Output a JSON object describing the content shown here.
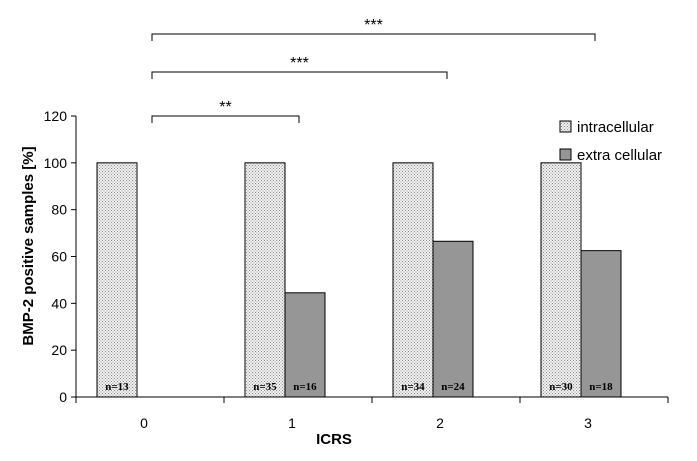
{
  "chart_data": {
    "type": "bar",
    "title": "",
    "xlabel": "ICRS",
    "ylabel": "BMP-2 positive samples [%]",
    "ylim": [
      0,
      120
    ],
    "yticks": [
      0,
      20,
      40,
      60,
      80,
      100,
      120
    ],
    "categories": [
      "0",
      "1",
      "2",
      "3"
    ],
    "grid": false,
    "legend_position": "top-right",
    "series": [
      {
        "name": "intracellular",
        "pattern": "dotted",
        "color": "#e6e6e6",
        "values": [
          100,
          100,
          100,
          100
        ],
        "n_labels": [
          "n=13",
          "n=35",
          "n=34",
          "n=30"
        ]
      },
      {
        "name": "extra cellular",
        "pattern": "solid",
        "color": "#969696",
        "values": [
          0,
          44.5,
          66.5,
          62.5
        ],
        "n_labels": [
          "",
          "n=16",
          "n=24",
          "n=18"
        ]
      }
    ],
    "significance": [
      {
        "from": "0",
        "to": "1",
        "label": "**"
      },
      {
        "from": "0",
        "to": "2",
        "label": "***"
      },
      {
        "from": "0",
        "to": "3",
        "label": "***"
      }
    ]
  }
}
